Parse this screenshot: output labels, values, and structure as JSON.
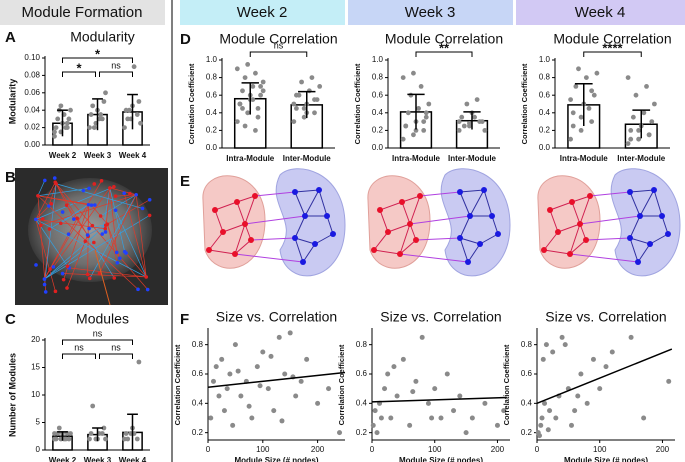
{
  "header": {
    "left": "Module Formation",
    "weeks": [
      "Week 2",
      "Week 3",
      "Week 4"
    ]
  },
  "figure_labels": [
    "B",
    "E"
  ],
  "chart_data": [
    {
      "type": "bar",
      "label": "A",
      "title": "Modularity",
      "y_label": "Modularity",
      "categories": [
        "Week 2",
        "Week 3",
        "Week 4"
      ],
      "values": [
        0.025,
        0.035,
        0.038
      ],
      "errors": [
        0.015,
        0.018,
        0.02
      ],
      "points": [
        [
          0.01,
          0.015,
          0.02,
          0.02,
          0.025,
          0.03,
          0.03,
          0.035,
          0.04,
          0.04,
          0.02,
          0.015,
          0.045,
          0.025
        ],
        [
          0.02,
          0.025,
          0.03,
          0.035,
          0.04,
          0.05,
          0.045,
          0.03,
          0.06,
          0.02,
          0.035
        ],
        [
          0.02,
          0.03,
          0.035,
          0.04,
          0.045,
          0.05,
          0.03,
          0.09,
          0.025,
          0.04
        ]
      ],
      "ylim": [
        0,
        0.1
      ],
      "yticks": [
        {
          "value": 0,
          "label": "0.00"
        },
        0.02,
        0.04,
        0.06,
        0.08,
        {
          "value": 0.1,
          "label": "0.10"
        }
      ],
      "comparisons": [
        {
          "pair": [
            "Week 2",
            "Week 3"
          ],
          "label": "*"
        },
        {
          "pair": [
            "Week 3",
            "Week 4"
          ],
          "label": "ns"
        },
        {
          "pair": [
            "Week 2",
            "Week 4"
          ],
          "label": "*"
        }
      ]
    },
    {
      "type": "bar",
      "label": "C",
      "title": "Modules",
      "y_label": "Number of Modules",
      "categories": [
        "Week 2",
        "Week 3",
        "Week 4"
      ],
      "values": [
        2.5,
        2.8,
        3.2
      ],
      "errors": [
        0.8,
        1.2,
        3.3
      ],
      "points": [
        [
          2,
          2,
          3,
          2,
          3,
          2,
          3,
          2,
          3,
          4,
          2,
          3
        ],
        [
          2,
          2,
          3,
          3,
          2,
          4,
          8,
          3,
          2
        ],
        [
          2,
          3,
          2,
          3,
          4,
          16,
          2,
          3
        ]
      ],
      "ylim": [
        0,
        20
      ],
      "yticks": [
        0,
        5,
        10,
        15,
        20
      ],
      "comparisons": [
        {
          "pair": [
            "Week 2",
            "Week 3"
          ],
          "label": "ns"
        },
        {
          "pair": [
            "Week 3",
            "Week 4"
          ],
          "label": "ns"
        },
        {
          "pair": [
            "Week 2",
            "Week 4"
          ],
          "label": "ns"
        }
      ]
    },
    {
      "type": "bar",
      "label": "D",
      "title": "Module Correlation",
      "y_label": "Correlation Coefficient",
      "categories": [
        "Intra-Module",
        "Inter-Module"
      ],
      "values": [
        0.56,
        0.49
      ],
      "errors": [
        0.18,
        0.15
      ],
      "points": [
        [
          0.3,
          0.4,
          0.45,
          0.5,
          0.55,
          0.6,
          0.65,
          0.7,
          0.75,
          0.8,
          0.85,
          0.9,
          0.95,
          0.35,
          0.5,
          0.6,
          0.7,
          0.45,
          0.55,
          0.65,
          0.25,
          0.2
        ],
        [
          0.3,
          0.35,
          0.4,
          0.45,
          0.5,
          0.55,
          0.6,
          0.65,
          0.7,
          0.75,
          0.8,
          0.5,
          0.45,
          0.55,
          0.6,
          0.4
        ]
      ],
      "ylim": [
        0,
        1
      ],
      "yticks": [
        {
          "value": 0,
          "label": "0.0"
        },
        0.2,
        0.4,
        0.6,
        0.8,
        {
          "value": 1,
          "label": "1.0"
        }
      ],
      "comparisons": [
        {
          "pair": [
            "Intra-Module",
            "Inter-Module"
          ],
          "label": "ns"
        }
      ]
    },
    {
      "type": "bar",
      "title": "Module Correlation",
      "y_label": "Correlation Coefficient",
      "categories": [
        "Intra-Module",
        "Inter-Module"
      ],
      "values": [
        0.41,
        0.31
      ],
      "errors": [
        0.2,
        0.1
      ],
      "points": [
        [
          0.1,
          0.15,
          0.2,
          0.25,
          0.3,
          0.35,
          0.4,
          0.45,
          0.5,
          0.6,
          0.7,
          0.8,
          0.85,
          0.3,
          0.25,
          0.2,
          0.4
        ],
        [
          0.2,
          0.25,
          0.3,
          0.35,
          0.4,
          0.3,
          0.25,
          0.35,
          0.2,
          0.5,
          0.55,
          0.3,
          0.28
        ]
      ],
      "ylim": [
        0,
        1
      ],
      "yticks": [
        {
          "value": 0,
          "label": "0.0"
        },
        0.2,
        0.4,
        0.6,
        0.8,
        {
          "value": 1,
          "label": "1.0"
        }
      ],
      "comparisons": [
        {
          "pair": [
            "Intra-Module",
            "Inter-Module"
          ],
          "label": "**"
        }
      ]
    },
    {
      "type": "bar",
      "title": "Module Correlation",
      "y_label": "Correlation Coefficient",
      "categories": [
        "Intra-Module",
        "Inter-Module"
      ],
      "values": [
        0.49,
        0.27
      ],
      "errors": [
        0.24,
        0.16
      ],
      "points": [
        [
          0.1,
          0.2,
          0.3,
          0.4,
          0.5,
          0.6,
          0.7,
          0.8,
          0.85,
          0.9,
          0.45,
          0.55,
          0.35,
          0.65,
          0.25
        ],
        [
          0.05,
          0.1,
          0.15,
          0.2,
          0.25,
          0.3,
          0.35,
          0.4,
          0.5,
          0.6,
          0.7,
          0.8,
          0.2,
          0.15,
          0.1
        ]
      ],
      "ylim": [
        0,
        1
      ],
      "yticks": [
        {
          "value": 0,
          "label": "0.0"
        },
        0.2,
        0.4,
        0.6,
        0.8,
        {
          "value": 1,
          "label": "1.0"
        }
      ],
      "comparisons": [
        {
          "pair": [
            "Intra-Module",
            "Inter-Module"
          ],
          "label": "****"
        }
      ]
    },
    {
      "type": "scatter",
      "label": "F",
      "title": "Size vs. Correlation",
      "y_label": "Correlation Coefficient",
      "x_label": "Module Size (# nodes)",
      "x": [
        5,
        10,
        15,
        20,
        25,
        30,
        35,
        40,
        45,
        50,
        60,
        70,
        80,
        90,
        100,
        110,
        120,
        130,
        140,
        150,
        160,
        170,
        180,
        200,
        220,
        240,
        55,
        75,
        95,
        115,
        135,
        155
      ],
      "y": [
        0.3,
        0.55,
        0.65,
        0.45,
        0.7,
        0.35,
        0.5,
        0.6,
        0.25,
        0.8,
        0.45,
        0.55,
        0.3,
        0.65,
        0.75,
        0.5,
        0.35,
        0.85,
        0.6,
        0.88,
        0.45,
        0.55,
        0.7,
        0.4,
        0.5,
        0.2,
        0.62,
        0.38,
        0.52,
        0.72,
        0.28,
        0.58
      ],
      "fit": {
        "x": [
          0,
          250
        ],
        "y": [
          0.51,
          0.61
        ]
      },
      "xlim": [
        0,
        250
      ],
      "xticks": [
        0,
        100,
        200
      ],
      "ylim": [
        0.15,
        0.9
      ],
      "yticks": [
        0.2,
        0.4,
        0.6,
        0.8
      ]
    },
    {
      "type": "scatter",
      "title": "Size vs. Correlation",
      "y_label": "Correlation Coefficient",
      "x_label": "Module Size (# nodes)",
      "x": [
        2,
        5,
        8,
        12,
        15,
        20,
        25,
        30,
        40,
        50,
        60,
        70,
        80,
        90,
        100,
        110,
        120,
        130,
        140,
        150,
        160,
        180,
        200,
        210,
        35,
        65,
        95
      ],
      "y": [
        0.25,
        0.35,
        0.2,
        0.4,
        0.3,
        0.5,
        0.6,
        0.3,
        0.45,
        0.7,
        0.25,
        0.55,
        0.85,
        0.4,
        0.5,
        0.3,
        0.6,
        0.35,
        0.45,
        0.2,
        0.3,
        0.4,
        0.25,
        0.35,
        0.65,
        0.48,
        0.3
      ],
      "fit": {
        "x": [
          0,
          215
        ],
        "y": [
          0.41,
          0.44
        ]
      },
      "xlim": [
        0,
        220
      ],
      "xticks": [
        0,
        100,
        200
      ],
      "ylim": [
        0.15,
        0.9
      ],
      "yticks": [
        0.2,
        0.4,
        0.6,
        0.8
      ]
    },
    {
      "type": "scatter",
      "title": "Size vs. Correlation",
      "y_label": "Correlation Coefficient",
      "x_label": "Module Size (# nodes)",
      "x": [
        2,
        4,
        6,
        8,
        10,
        12,
        15,
        18,
        20,
        25,
        30,
        35,
        40,
        50,
        60,
        70,
        80,
        90,
        100,
        110,
        120,
        150,
        170,
        210,
        45,
        55,
        65
      ],
      "y": [
        0.2,
        0.18,
        0.25,
        0.3,
        0.7,
        0.4,
        0.8,
        0.22,
        0.35,
        0.75,
        0.3,
        0.45,
        0.85,
        0.5,
        0.35,
        0.6,
        0.4,
        0.7,
        0.5,
        0.65,
        0.75,
        0.85,
        0.3,
        0.55,
        0.8,
        0.25,
        0.45
      ],
      "fit": {
        "x": [
          0,
          215
        ],
        "y": [
          0.4,
          0.77
        ]
      },
      "xlim": [
        0,
        220
      ],
      "xticks": [
        0,
        100,
        200
      ],
      "ylim": [
        0.15,
        0.9
      ],
      "yticks": [
        0.2,
        0.4,
        0.6,
        0.8
      ]
    }
  ]
}
